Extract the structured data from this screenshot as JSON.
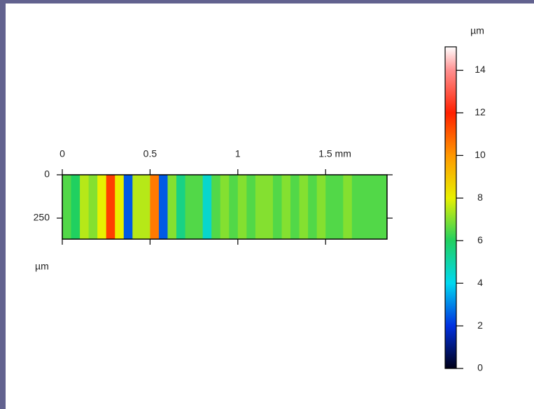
{
  "chart_data": {
    "type": "heatmap",
    "ylabel": "µm",
    "colorbar_label": "µm",
    "x": [
      0.025,
      0.075,
      0.125,
      0.175,
      0.225,
      0.275,
      0.325,
      0.375,
      0.425,
      0.475,
      0.525,
      0.575,
      0.625,
      0.675,
      0.725,
      0.775,
      0.825,
      0.875,
      0.925,
      0.975,
      1.025,
      1.075,
      1.125,
      1.175,
      1.225,
      1.275,
      1.325,
      1.375,
      1.425,
      1.475,
      1.525,
      1.575,
      1.625,
      1.675,
      1.725,
      1.775,
      1.825
    ],
    "values": [
      6.5,
      6,
      7.5,
      7,
      8,
      11.5,
      8,
      2.5,
      7.5,
      7.5,
      10.5,
      2.5,
      7,
      5.5,
      6.5,
      6.5,
      4.5,
      6.5,
      7,
      6.5,
      7,
      6.5,
      7,
      7,
      6.5,
      7,
      6.5,
      7,
      6.5,
      7,
      6.5,
      6.5,
      7,
      6.5,
      6.5,
      6.5,
      6.5
    ],
    "xlim": [
      0,
      1.85
    ],
    "xticks": [
      0,
      0.5,
      1,
      {
        "value": 1.5,
        "label": "1.5 mm"
      }
    ],
    "ylim": [
      0,
      371
    ],
    "yticks": [
      0,
      250
    ],
    "zlim": [
      0,
      15.1
    ],
    "zticks": [
      0,
      2,
      4,
      6,
      8,
      10,
      12,
      14
    ],
    "colormap": [
      {
        "value": 0,
        "color": "#000018"
      },
      {
        "value": 2,
        "color": "#0030e0"
      },
      {
        "value": 4,
        "color": "#00d8f0"
      },
      {
        "value": 6,
        "color": "#20d060"
      },
      {
        "value": 8,
        "color": "#e8f000"
      },
      {
        "value": 10,
        "color": "#ff9800"
      },
      {
        "value": 12,
        "color": "#ff2000"
      },
      {
        "value": 14,
        "color": "#ff9090"
      },
      {
        "value": 15.1,
        "color": "#ffffff"
      }
    ]
  }
}
